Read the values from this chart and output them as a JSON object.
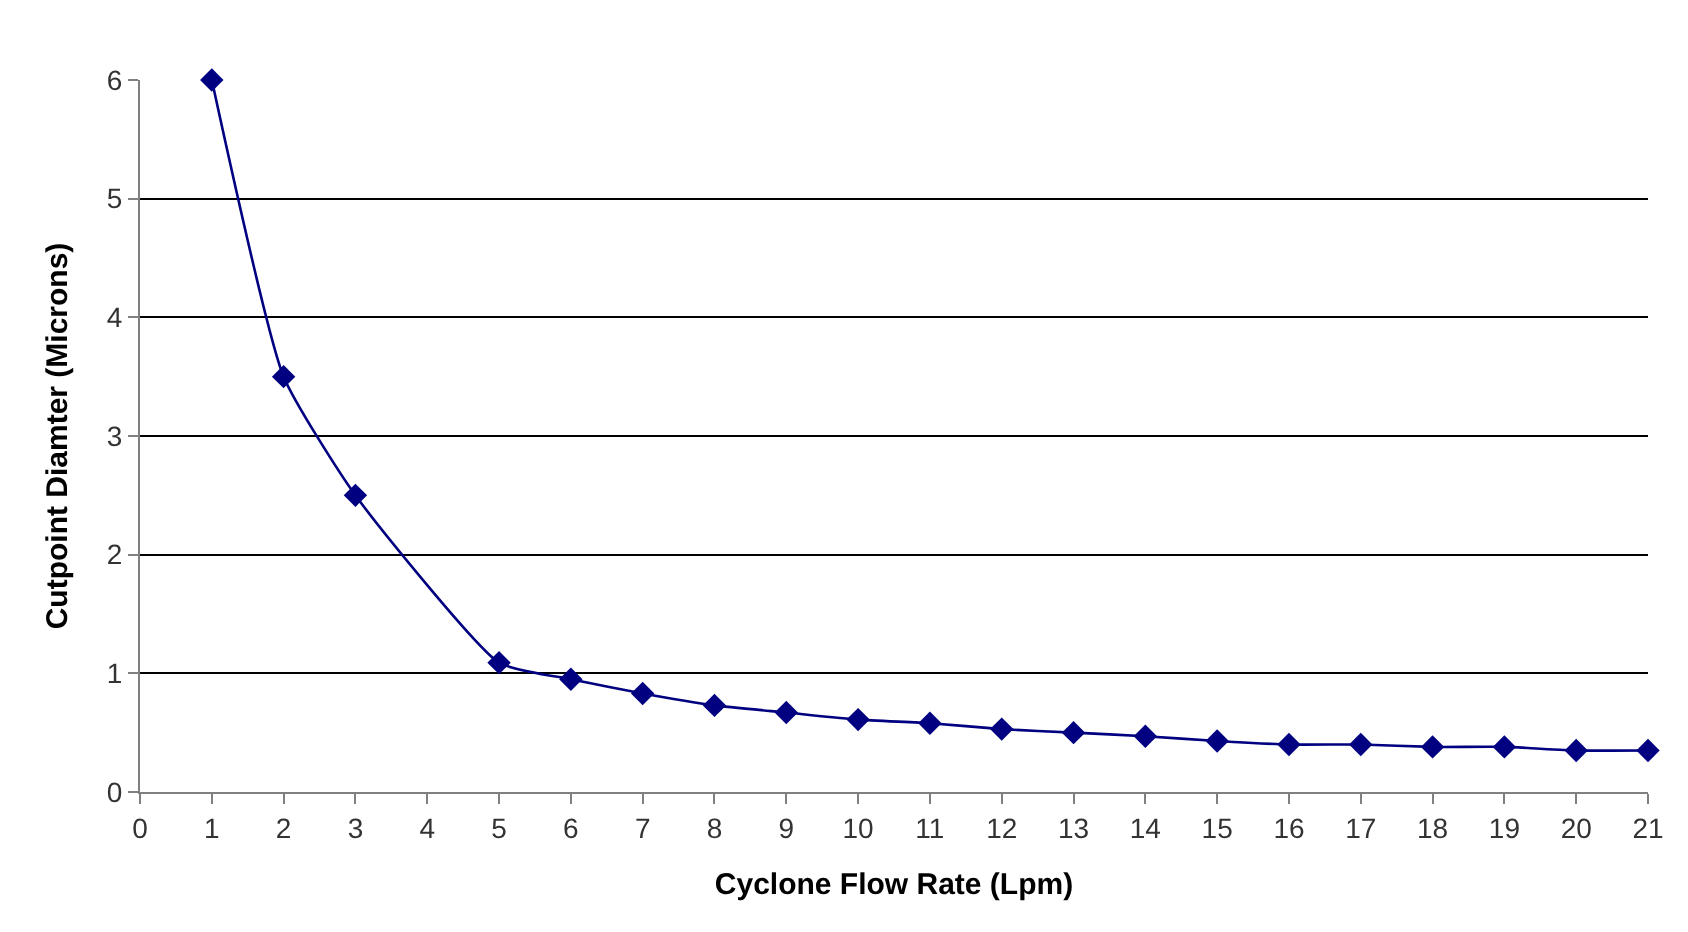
{
  "chart_data": {
    "type": "line",
    "xlabel": "Cyclone Flow Rate (Lpm)",
    "ylabel": "Cutpoint Diamter (Microns)",
    "x": [
      1,
      2,
      3,
      5,
      6,
      7,
      8,
      9,
      10,
      11,
      12,
      13,
      14,
      15,
      16,
      17,
      18,
      19,
      20,
      21
    ],
    "series": [
      {
        "color": "#000080",
        "values": [
          6.0,
          3.5,
          2.5,
          1.09,
          0.95,
          0.83,
          0.73,
          0.67,
          0.61,
          0.58,
          0.53,
          0.5,
          0.47,
          0.43,
          0.4,
          0.4,
          0.38,
          0.38,
          0.35,
          0.35
        ]
      }
    ],
    "xlim": [
      0,
      21
    ],
    "xticks": [
      0,
      1,
      2,
      3,
      4,
      5,
      6,
      7,
      8,
      9,
      10,
      11,
      12,
      13,
      14,
      15,
      16,
      17,
      18,
      19,
      20,
      21
    ],
    "ylim": [
      0,
      6
    ],
    "yticks": [
      0,
      1,
      2,
      3,
      4,
      5,
      6
    ],
    "grid": "y",
    "marker": "diamond",
    "line_style": "solid"
  }
}
